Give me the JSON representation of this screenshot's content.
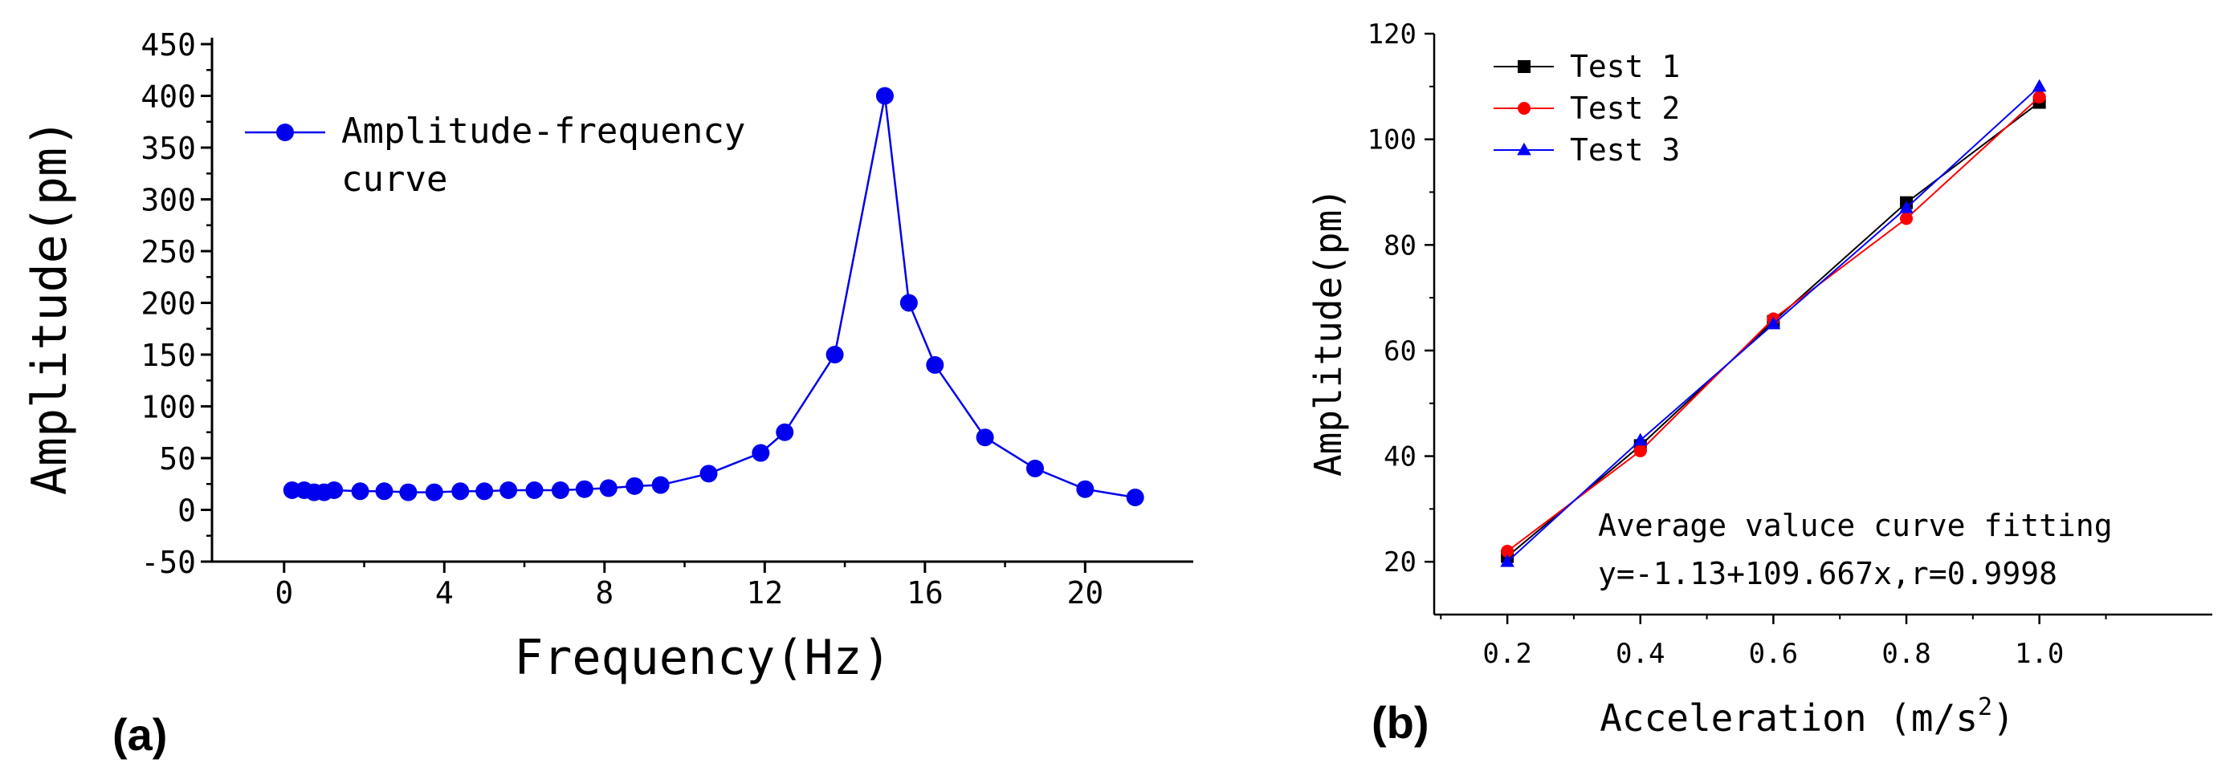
{
  "chart_data": [
    {
      "panel_label": "(a)",
      "type": "line",
      "title": "",
      "xlabel": "Frequency(Hz)",
      "ylabel": "Amplitude(pm)",
      "xlim": [
        -1.8,
        22.7
      ],
      "ylim": [
        -50,
        450
      ],
      "xticks": [
        0,
        4,
        8,
        12,
        16,
        20
      ],
      "yticks": [
        -50,
        0,
        50,
        100,
        150,
        200,
        250,
        300,
        350,
        400,
        450
      ],
      "legend": {
        "position": "top-left",
        "lines": [
          "Amplitude-frequency",
          "curve"
        ]
      },
      "series": [
        {
          "name": "Amplitude-frequency curve",
          "color": "#0000ee",
          "marker": "circle",
          "x": [
            0.2,
            0.5,
            0.75,
            1.0,
            1.25,
            1.9,
            2.5,
            3.1,
            3.75,
            4.4,
            5.0,
            5.6,
            6.25,
            6.9,
            7.5,
            8.1,
            8.75,
            9.4,
            10.6,
            11.9,
            12.5,
            13.75,
            15.0,
            15.6,
            16.25,
            17.5,
            18.75,
            20.0,
            21.25
          ],
          "y": [
            19,
            19,
            17,
            17,
            19,
            18,
            18,
            17,
            17,
            18,
            18,
            19,
            19,
            19,
            20,
            21,
            23,
            24,
            35,
            55,
            75,
            150,
            400,
            200,
            140,
            70,
            40,
            20,
            12
          ]
        }
      ]
    },
    {
      "panel_label": "(b)",
      "type": "line",
      "title": "",
      "xlabel": "Acceleration (m/s",
      "xlabel_sup": "2",
      "xlabel_end": ")",
      "ylabel": "Amplitude(pm)",
      "xlim": [
        0.09,
        1.26
      ],
      "ylim": [
        10,
        120
      ],
      "xticks": [
        "0.2",
        "0.4",
        "0.6",
        "0.8",
        "1.0"
      ],
      "yticks": [
        20,
        40,
        60,
        80,
        100,
        120
      ],
      "legend": {
        "position": "top-left"
      },
      "annotation": [
        "Average valuce curve fitting",
        "y=-1.13+109.667x,r=0.9998"
      ],
      "series": [
        {
          "name": "Test 1",
          "color": "#000000",
          "marker": "square",
          "x": [
            0.2,
            0.4,
            0.6,
            0.8,
            1.0
          ],
          "y": [
            21,
            42,
            65.5,
            88,
            107
          ]
        },
        {
          "name": "Test 2",
          "color": "#ff0000",
          "marker": "circle",
          "x": [
            0.2,
            0.4,
            0.6,
            0.8,
            1.0
          ],
          "y": [
            22,
            41,
            66,
            85,
            108
          ]
        },
        {
          "name": "Test 3",
          "color": "#0000ff",
          "marker": "triangle",
          "x": [
            0.2,
            0.4,
            0.6,
            0.8,
            1.0
          ],
          "y": [
            20,
            43,
            65,
            87,
            110
          ]
        }
      ]
    }
  ]
}
